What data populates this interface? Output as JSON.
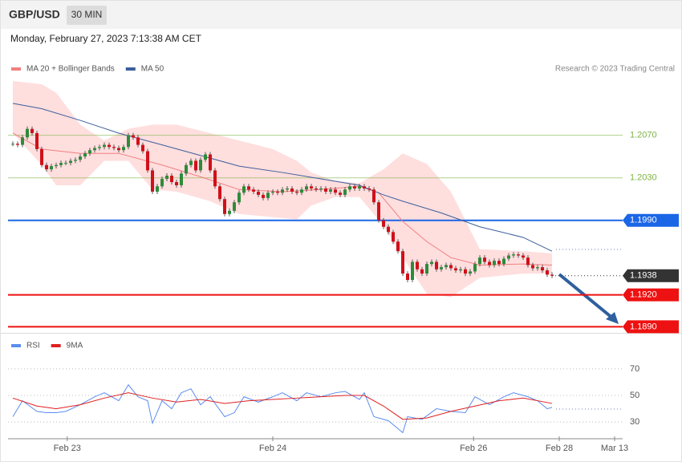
{
  "header": {
    "symbol": "GBP/USD",
    "timeframe": "30 MIN",
    "timestamp": "Monday, February 27, 2023 7:13:38 AM CET"
  },
  "chart_data": [
    {
      "type": "candlestick",
      "annotation": "Research © 2023 Trading Central",
      "up_color": "#2e8b3a",
      "down_color": "#d0101a",
      "xlim": [
        -1,
        127
      ],
      "ylim": [
        1.1882,
        1.2121
      ],
      "close": [
        1.2062,
        1.2061,
        1.2068,
        1.2076,
        1.2072,
        1.2057,
        1.2042,
        1.2038,
        1.2041,
        1.2042,
        1.2044,
        1.2044,
        1.2046,
        1.2047,
        1.205,
        1.2053,
        1.2056,
        1.2058,
        1.2059,
        1.2061,
        1.2059,
        1.2058,
        1.2056,
        1.2059,
        1.207,
        1.2068,
        1.2061,
        1.2055,
        1.2037,
        1.2017,
        1.2022,
        1.2029,
        1.2032,
        1.2026,
        1.2023,
        1.2034,
        1.2042,
        1.2046,
        1.2037,
        1.2047,
        1.2052,
        1.2037,
        1.2022,
        1.201,
        1.1996,
        1.1999,
        1.2007,
        1.2016,
        1.2022,
        1.2019,
        1.2017,
        1.2014,
        1.2011,
        1.2016,
        1.2017,
        1.2016,
        1.2019,
        1.202,
        1.2017,
        1.2016,
        1.2019,
        1.2022,
        1.202,
        1.2019,
        1.202,
        1.2017,
        1.2019,
        1.2016,
        1.2014,
        1.2019,
        1.2022,
        1.202,
        1.2022,
        1.202,
        1.2019,
        1.2007,
        1.199,
        1.1984,
        1.1979,
        1.197,
        1.1961,
        1.194,
        1.1934,
        1.1951,
        1.1944,
        1.194,
        1.1949,
        1.1951,
        1.1944,
        1.1946,
        1.1948,
        1.1945,
        1.1943,
        1.1944,
        1.194,
        1.1942,
        1.1949,
        1.1955,
        1.1951,
        1.1948,
        1.1952,
        1.1949,
        1.1954,
        1.1957,
        1.1958,
        1.1957,
        1.1955,
        1.1948,
        1.1945,
        1.1946,
        1.1943,
        1.1939,
        1.1938
      ],
      "bands": {
        "color": "#ffdede",
        "x": [
          0,
          6,
          9,
          14,
          19,
          24,
          29,
          34,
          41,
          47,
          54,
          59,
          62,
          67,
          72,
          77,
          81,
          86,
          91,
          97,
          106,
          112
        ],
        "upper": [
          1.2121,
          1.2118,
          1.211,
          1.208,
          1.2065,
          1.2076,
          1.208,
          1.208,
          1.2072,
          1.2065,
          1.2057,
          1.2046,
          1.2035,
          1.2027,
          1.2025,
          1.2038,
          1.2053,
          1.2043,
          1.2017,
          1.1963,
          1.1961,
          1.1959
        ],
        "lower": [
          1.2072,
          1.2042,
          1.2023,
          1.2023,
          1.2046,
          1.2046,
          1.2019,
          1.2017,
          1.2008,
          1.1996,
          1.1993,
          1.1991,
          1.2004,
          1.2012,
          1.2012,
          1.1985,
          1.1955,
          1.1921,
          1.1918,
          1.1936,
          1.194,
          1.194
        ]
      },
      "series": [
        {
          "name": "MA 20 + Bollinger Bands",
          "color": "#f08080",
          "x": [
            0,
            6,
            14,
            22,
            31,
            39,
            47,
            56,
            64,
            72,
            76,
            81,
            86,
            91,
            97,
            106,
            112
          ],
          "values": [
            1.2072,
            1.2057,
            1.2053,
            1.2053,
            1.2042,
            1.2031,
            1.2019,
            1.2017,
            1.2019,
            1.2022,
            1.2016,
            1.1989,
            1.197,
            1.1955,
            1.1948,
            1.1949,
            1.1948
          ]
        },
        {
          "name": "MA 50",
          "color": "#3b5e9c",
          "x": [
            0,
            6,
            14,
            22,
            31,
            39,
            47,
            56,
            64,
            72,
            77,
            81,
            89,
            97,
            106,
            112
          ],
          "values": [
            1.21,
            1.2095,
            1.2084,
            1.2072,
            1.2061,
            1.2051,
            1.2041,
            1.2035,
            1.2029,
            1.2023,
            1.2014,
            1.2008,
            1.1997,
            1.1984,
            1.1974,
            1.1961
          ]
        }
      ],
      "levels": [
        {
          "value": 1.207,
          "label": "1.2070",
          "color": "#7cb342",
          "badge": false,
          "dashed": false
        },
        {
          "value": 1.203,
          "label": "1.2030",
          "color": "#7cb342",
          "badge": false,
          "dashed": false
        },
        {
          "value": 1.199,
          "label": "1.1990",
          "color": "#1a66e6",
          "badge": true,
          "dashed": false
        },
        {
          "value": 1.1938,
          "label": "1.1938",
          "color": "#333333",
          "badge": true,
          "dashed": true
        },
        {
          "value": 1.192,
          "label": "1.1920",
          "color": "#ee1111",
          "badge": true,
          "dashed": false
        },
        {
          "value": 1.189,
          "label": "1.1890",
          "color": "#ee1111",
          "badge": true,
          "dashed": false
        }
      ]
    },
    {
      "type": "line",
      "xlim": [
        -1,
        127
      ],
      "ylim": [
        18,
        82
      ],
      "yticks": [
        70,
        50,
        30
      ],
      "grid": true,
      "xticks": [
        {
          "value": 11.3,
          "label": "Feb 23"
        },
        {
          "value": 54,
          "label": "Feb 24"
        },
        {
          "value": 95.7,
          "label": "Feb 26"
        },
        {
          "value": 113.5,
          "label": "Feb 28"
        },
        {
          "value": 125,
          "label": "Mar 13"
        }
      ],
      "series": [
        {
          "name": "RSI",
          "color": "#5b8def",
          "x": [
            0,
            2,
            5,
            7,
            9,
            11,
            14,
            17,
            19,
            22,
            24,
            26,
            28,
            29,
            31,
            33,
            35,
            37,
            39,
            41,
            44,
            46,
            48,
            51,
            54,
            56,
            59,
            61,
            64,
            67,
            69,
            72,
            73,
            75,
            78,
            81,
            82,
            85,
            88,
            91,
            94,
            96,
            99,
            102,
            104,
            107,
            109,
            111,
            112
          ],
          "values": [
            34,
            46,
            38,
            37,
            37,
            38,
            43,
            49,
            52,
            46,
            58,
            49,
            46,
            29,
            46,
            40,
            52,
            55,
            43,
            49,
            34,
            37,
            49,
            45,
            49,
            52,
            46,
            52,
            49,
            52,
            53,
            47,
            52,
            34,
            31,
            22,
            34,
            32,
            40,
            38,
            37,
            49,
            43,
            49,
            52,
            49,
            46,
            40,
            41
          ]
        },
        {
          "name": "9MA",
          "color": "#e02020",
          "x": [
            0,
            5,
            9,
            14,
            19,
            24,
            29,
            34,
            39,
            44,
            49,
            54,
            59,
            64,
            69,
            73,
            77,
            81,
            86,
            91,
            96,
            101,
            106,
            112
          ],
          "values": [
            48,
            42,
            40,
            43,
            48,
            52,
            48,
            45,
            47,
            44,
            46,
            47,
            48,
            49,
            50,
            50,
            42,
            32,
            33,
            38,
            42,
            46,
            48,
            44
          ]
        }
      ]
    }
  ]
}
